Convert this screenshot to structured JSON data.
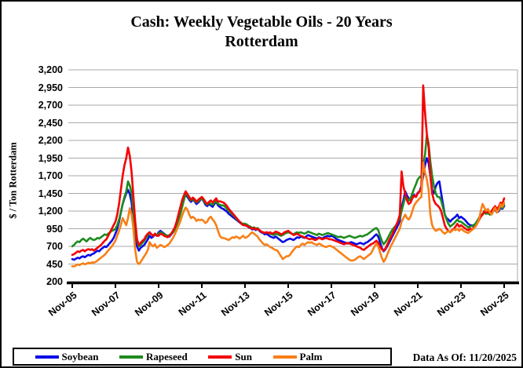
{
  "title_line1": "Cash: Weekly Vegetable Oils - 20 Years",
  "title_line2": "Rotterdam",
  "data_as_of": "Data As Of: 11/20/2025",
  "chart_data": {
    "type": "line",
    "title": "Cash: Weekly Vegetable Oils - 20 Years Rotterdam",
    "xlabel": "",
    "ylabel": "$ / Ton Rotterdam",
    "ylim": [
      200,
      3200
    ],
    "y_ticks": [
      200,
      450,
      700,
      950,
      1200,
      1450,
      1700,
      1950,
      2200,
      2450,
      2700,
      2950,
      3200
    ],
    "y_tick_labels": [
      "200",
      "450",
      "700",
      "950",
      "1,200",
      "1,450",
      "1,700",
      "1,950",
      "2,200",
      "2,450",
      "2,700",
      "2,950",
      "3,200"
    ],
    "x_tick_labels": [
      "Nov-05",
      "Nov-07",
      "Nov-09",
      "Nov-11",
      "Nov-13",
      "Nov-15",
      "Nov-17",
      "Nov-19",
      "Nov-21",
      "Nov-23",
      "Nov-25"
    ],
    "x_resolution": "monthly (Nov-2005 through Nov-2025, values in $/ton)",
    "grid": "horizontal",
    "legend_position": "bottom",
    "gridline_color": "#A9A9A9",
    "series": [
      {
        "name": "Soybean",
        "color": "#0A0AE6",
        "values": [
          520,
          510,
          525,
          540,
          530,
          550,
          560,
          545,
          565,
          580,
          570,
          590,
          600,
          620,
          640,
          630,
          660,
          680,
          700,
          690,
          720,
          750,
          780,
          820,
          880,
          950,
          1050,
          1180,
          1300,
          1380,
          1450,
          1500,
          1440,
          1320,
          1050,
          820,
          700,
          640,
          680,
          700,
          720,
          760,
          800,
          850,
          820,
          840,
          870,
          850,
          900,
          920,
          900,
          880,
          860,
          850,
          840,
          870,
          900,
          950,
          1020,
          1100,
          1200,
          1300,
          1380,
          1430,
          1400,
          1360,
          1330,
          1360,
          1340,
          1300,
          1320,
          1350,
          1380,
          1340,
          1290,
          1270,
          1300,
          1280,
          1260,
          1300,
          1330,
          1280,
          1260,
          1240,
          1230,
          1210,
          1190,
          1160,
          1140,
          1120,
          1100,
          1080,
          1060,
          1040,
          1020,
          1010,
          1000,
          990,
          970,
          960,
          940,
          950,
          930,
          950,
          920,
          900,
          890,
          870,
          880,
          860,
          840,
          830,
          820,
          840,
          820,
          800,
          780,
          760,
          770,
          790,
          800,
          810,
          800,
          790,
          810,
          830,
          820,
          840,
          830,
          820,
          840,
          860,
          850,
          840,
          830,
          820,
          810,
          830,
          820,
          810,
          830,
          840,
          850,
          840,
          850,
          840,
          820,
          800,
          790,
          780,
          770,
          760,
          750,
          740,
          750,
          760,
          750,
          740,
          730,
          740,
          750,
          740,
          730,
          750,
          760,
          780,
          800,
          820,
          850,
          870,
          840,
          760,
          680,
          630,
          660,
          700,
          750,
          800,
          850,
          900,
          950,
          1000,
          1060,
          1250,
          1350,
          1480,
          1420,
          1380,
          1350,
          1400,
          1430,
          1400,
          1460,
          1480,
          1550,
          1700,
          1850,
          1950,
          1880,
          1700,
          1500,
          1450,
          1550,
          1600,
          1620,
          1450,
          1300,
          1150,
          1100,
          1080,
          1050,
          1080,
          1100,
          1120,
          1150,
          1100,
          1120,
          1100,
          1080,
          1050,
          1020,
          1000,
          1000,
          980,
          1000,
          1050,
          1100,
          1150,
          1150,
          1200,
          1180,
          1180,
          1150,
          1170,
          1200,
          1220,
          1180,
          1200,
          1250,
          1230,
          1270
        ]
      },
      {
        "name": "Rapeseed",
        "color": "#1E8B1E",
        "values": [
          700,
          720,
          750,
          770,
          760,
          790,
          810,
          790,
          770,
          800,
          820,
          800,
          790,
          800,
          820,
          810,
          830,
          850,
          870,
          860,
          880,
          900,
          920,
          930,
          950,
          1000,
          1080,
          1180,
          1300,
          1400,
          1480,
          1620,
          1560,
          1450,
          1200,
          950,
          780,
          700,
          720,
          750,
          780,
          820,
          860,
          900,
          870,
          850,
          880,
          860,
          880,
          900,
          890,
          870,
          860,
          850,
          860,
          880,
          900,
          940,
          1000,
          1070,
          1150,
          1250,
          1350,
          1450,
          1420,
          1380,
          1350,
          1370,
          1350,
          1320,
          1340,
          1360,
          1380,
          1350,
          1310,
          1290,
          1320,
          1300,
          1290,
          1320,
          1340,
          1300,
          1290,
          1280,
          1280,
          1260,
          1230,
          1200,
          1180,
          1150,
          1130,
          1100,
          1070,
          1050,
          1030,
          1020,
          1020,
          1010,
          990,
          980,
          960,
          970,
          950,
          960,
          930,
          910,
          900,
          890,
          900,
          890,
          880,
          870,
          860,
          880,
          870,
          860,
          850,
          860,
          880,
          890,
          900,
          890,
          880,
          870,
          890,
          900,
          890,
          900,
          890,
          880,
          890,
          910,
          900,
          890,
          880,
          870,
          860,
          880,
          870,
          860,
          870,
          880,
          890,
          880,
          870,
          860,
          850,
          840,
          830,
          840,
          830,
          820,
          830,
          840,
          850,
          840,
          830,
          820,
          830,
          840,
          850,
          840,
          850,
          860,
          870,
          890,
          910,
          930,
          950,
          960,
          930,
          850,
          780,
          730,
          760,
          800,
          850,
          900,
          940,
          970,
          1000,
          1050,
          1100,
          1200,
          1300,
          1400,
          1380,
          1350,
          1380,
          1450,
          1520,
          1580,
          1650,
          1680,
          1700,
          1850,
          2000,
          2270,
          2150,
          1900,
          1700,
          1550,
          1450,
          1400,
          1400,
          1350,
          1250,
          1150,
          1080,
          1020,
          980,
          1000,
          1020,
          1050,
          1080,
          1050,
          1050,
          1030,
          1010,
          990,
          970,
          980,
          990,
          1000,
          1020,
          1060,
          1100,
          1130,
          1150,
          1180,
          1160,
          1170,
          1150,
          1170,
          1200,
          1230,
          1200,
          1220,
          1260,
          1240,
          1290
        ]
      },
      {
        "name": "Sun",
        "color": "#F40000",
        "values": [
          580,
          590,
          610,
          630,
          620,
          640,
          650,
          630,
          650,
          660,
          650,
          660,
          640,
          660,
          680,
          700,
          720,
          750,
          780,
          800,
          850,
          900,
          950,
          1000,
          1050,
          1150,
          1300,
          1500,
          1700,
          1850,
          1950,
          2100,
          1980,
          1750,
          1400,
          1050,
          800,
          720,
          750,
          780,
          800,
          850,
          880,
          900,
          870,
          850,
          880,
          850,
          850,
          880,
          870,
          850,
          840,
          830,
          850,
          880,
          920,
          970,
          1050,
          1150,
          1250,
          1350,
          1420,
          1480,
          1440,
          1400,
          1360,
          1390,
          1370,
          1330,
          1360,
          1380,
          1400,
          1370,
          1330,
          1300,
          1330,
          1350,
          1320,
          1350,
          1380,
          1330,
          1340,
          1330,
          1320,
          1300,
          1270,
          1230,
          1200,
          1170,
          1140,
          1110,
          1080,
          1050,
          1020,
          1000,
          1000,
          990,
          980,
          960,
          950,
          960,
          940,
          950,
          930,
          910,
          900,
          890,
          900,
          890,
          900,
          880,
          890,
          910,
          900,
          890,
          870,
          880,
          900,
          910,
          920,
          900,
          880,
          860,
          870,
          880,
          860,
          850,
          840,
          830,
          820,
          810,
          800,
          810,
          800,
          790,
          800,
          820,
          810,
          800,
          810,
          820,
          810,
          800,
          800,
          790,
          780,
          770,
          760,
          750,
          740,
          730,
          740,
          750,
          740,
          730,
          720,
          710,
          700,
          690,
          680,
          660,
          650,
          670,
          690,
          710,
          730,
          740,
          760,
          780,
          750,
          700,
          660,
          640,
          670,
          720,
          780,
          830,
          880,
          940,
          1000,
          1060,
          1150,
          1760,
          1550,
          1450,
          1350,
          1300,
          1320,
          1380,
          1420,
          1400,
          1450,
          1480,
          1520,
          2980,
          2600,
          2300,
          2100,
          1700,
          1450,
          1350,
          1300,
          1280,
          1250,
          1200,
          1100,
          1000,
          950,
          920,
          900,
          930,
          950,
          980,
          1020,
          980,
          1000,
          980,
          960,
          940,
          930,
          950,
          940,
          960,
          980,
          1020,
          1070,
          1120,
          1150,
          1200,
          1180,
          1200,
          1170,
          1200,
          1240,
          1270,
          1230,
          1260,
          1320,
          1300,
          1380
        ]
      },
      {
        "name": "Palm",
        "color": "#F88017",
        "values": [
          420,
          415,
          430,
          445,
          435,
          450,
          460,
          445,
          455,
          470,
          460,
          475,
          470,
          480,
          500,
          520,
          540,
          560,
          580,
          610,
          640,
          670,
          700,
          740,
          780,
          850,
          920,
          1000,
          1100,
          1050,
          1000,
          1100,
          1240,
          1150,
          950,
          650,
          480,
          450,
          480,
          520,
          560,
          600,
          650,
          760,
          720,
          700,
          730,
          680,
          700,
          720,
          710,
          690,
          700,
          720,
          740,
          780,
          820,
          870,
          930,
          990,
          1050,
          1130,
          1200,
          1250,
          1220,
          1150,
          1100,
          1120,
          1100,
          1060,
          1080,
          1070,
          1080,
          1060,
          1030,
          1050,
          1100,
          1120,
          1080,
          1050,
          1000,
          920,
          850,
          820,
          820,
          810,
          800,
          790,
          810,
          830,
          820,
          840,
          830,
          810,
          830,
          850,
          820,
          830,
          850,
          880,
          900,
          880,
          860,
          840,
          800,
          770,
          740,
          720,
          730,
          710,
          690,
          680,
          660,
          650,
          640,
          600,
          560,
          520,
          540,
          560,
          560,
          580,
          620,
          650,
          680,
          700,
          690,
          720,
          740,
          720,
          740,
          760,
          750,
          760,
          740,
          730,
          720,
          740,
          730,
          710,
          700,
          690,
          700,
          710,
          700,
          690,
          670,
          650,
          630,
          610,
          590,
          570,
          550,
          530,
          510,
          500,
          500,
          510,
          530,
          550,
          560,
          540,
          520,
          540,
          560,
          580,
          600,
          650,
          700,
          740,
          700,
          620,
          540,
          480,
          520,
          580,
          640,
          700,
          750,
          800,
          850,
          900,
          950,
          1050,
          1100,
          1150,
          1100,
          1080,
          1120,
          1200,
          1280,
          1320,
          1350,
          1380,
          1400,
          1890,
          1750,
          1650,
          1500,
          1150,
          1000,
          950,
          920,
          930,
          950,
          930,
          900,
          880,
          900,
          920,
          900,
          920,
          940,
          930,
          950,
          920,
          950,
          930,
          910,
          900,
          890,
          910,
          930,
          950,
          980,
          1020,
          1080,
          1200,
          1300,
          1250,
          1200,
          1230,
          1180,
          1150,
          1200,
          1250,
          1180,
          1220,
          1300,
          1260,
          1320
        ]
      }
    ]
  }
}
